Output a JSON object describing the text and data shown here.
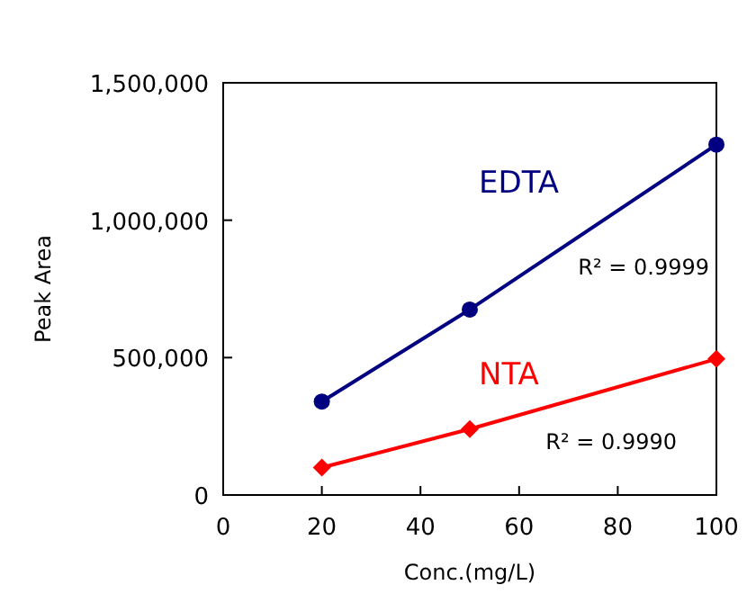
{
  "chart_data": {
    "type": "line",
    "xlabel": "Conc.(mg/L)",
    "ylabel": "Peak Area",
    "xlim": [
      0,
      100
    ],
    "xticks": [
      0,
      20,
      40,
      60,
      80,
      100
    ],
    "ylim": [
      0,
      1500000
    ],
    "yticks": [
      {
        "value": 0,
        "label": "0"
      },
      {
        "value": 500000,
        "label": "500,000"
      },
      {
        "value": 1000000,
        "label": "1,000,000"
      },
      {
        "value": 1500000,
        "label": "1,500,000"
      }
    ],
    "x": [
      20,
      50,
      100
    ],
    "series": [
      {
        "name": "EDTA",
        "color": "#000080",
        "marker": "circle",
        "values": [
          340000,
          675000,
          1275000
        ]
      },
      {
        "name": "NTA",
        "color": "#ff0000",
        "marker": "diamond",
        "values": [
          100000,
          240000,
          495000
        ]
      }
    ],
    "annotations": [
      "R² = 0.9999",
      "R² = 0.9990"
    ],
    "grid": false
  }
}
